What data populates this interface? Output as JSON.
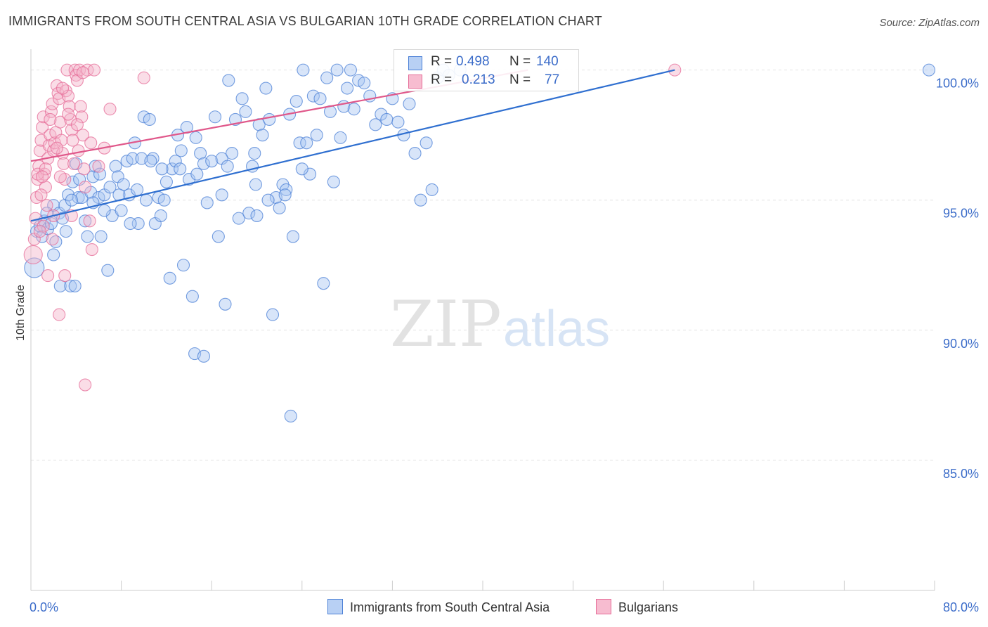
{
  "title": "IMMIGRANTS FROM SOUTH CENTRAL ASIA VS BULGARIAN 10TH GRADE CORRELATION CHART",
  "source": "Source: ZipAtlas.com",
  "watermark": {
    "part1": "ZIP",
    "part2": "atlas"
  },
  "colors": {
    "blue": "#4a7fd6",
    "blue_fill": "#a9c6f2",
    "pink": "#e56b97",
    "pink_fill": "#f5b3c9",
    "axis_text": "#3b6cc9",
    "grid": "#e3e3e3"
  },
  "legend_top": {
    "rows": [
      {
        "r_label": "R =",
        "r_value": "0.498",
        "n_label": "N =",
        "n_value": "140"
      },
      {
        "r_label": "R =",
        "r_value": "0.213",
        "n_label": "N =",
        "n_value": "77"
      }
    ]
  },
  "chart_data": {
    "type": "scatter",
    "ylabel": "10th Grade",
    "xlim": [
      0,
      80
    ],
    "ylim": [
      80,
      100.8
    ],
    "x_ticks": [
      "0.0%",
      "80.0%"
    ],
    "y_ticks": [
      {
        "value": 100,
        "label": "100.0%"
      },
      {
        "value": 95,
        "label": "95.0%"
      },
      {
        "value": 90,
        "label": "90.0%"
      },
      {
        "value": 85,
        "label": "85.0%"
      }
    ],
    "grid": true,
    "legend_position": "bottom",
    "series": [
      {
        "name": "Immigrants from South Central Asia",
        "color": "blue",
        "trend": [
          [
            0,
            94.2
          ],
          [
            57,
            100
          ]
        ],
        "points": [
          [
            0.3,
            92.4
          ],
          [
            0.5,
            93.8
          ],
          [
            0.8,
            94.0
          ],
          [
            1.0,
            93.6
          ],
          [
            1.2,
            94.2
          ],
          [
            1.5,
            93.9
          ],
          [
            1.8,
            94.1
          ],
          [
            2.0,
            94.8
          ],
          [
            2.2,
            93.4
          ],
          [
            2.5,
            94.5
          ],
          [
            2.6,
            91.7
          ],
          [
            3.0,
            94.8
          ],
          [
            3.3,
            95.2
          ],
          [
            3.5,
            91.7
          ],
          [
            3.7,
            95.7
          ],
          [
            4.0,
            96.4
          ],
          [
            4.2,
            95.1
          ],
          [
            4.5,
            95.1
          ],
          [
            4.8,
            94.2
          ],
          [
            5.0,
            93.6
          ],
          [
            5.3,
            95.3
          ],
          [
            5.5,
            95.9
          ],
          [
            5.7,
            96.3
          ],
          [
            6.0,
            95.1
          ],
          [
            6.2,
            93.6
          ],
          [
            6.5,
            95.2
          ],
          [
            6.8,
            92.3
          ],
          [
            7.0,
            95.5
          ],
          [
            7.2,
            94.4
          ],
          [
            7.5,
            96.3
          ],
          [
            7.7,
            95.9
          ],
          [
            8.0,
            94.6
          ],
          [
            8.2,
            95.6
          ],
          [
            8.5,
            96.5
          ],
          [
            8.7,
            95.2
          ],
          [
            9.0,
            96.6
          ],
          [
            9.2,
            97.2
          ],
          [
            9.5,
            94.1
          ],
          [
            9.8,
            96.6
          ],
          [
            10.0,
            98.2
          ],
          [
            10.2,
            95.0
          ],
          [
            10.5,
            98.1
          ],
          [
            10.8,
            96.6
          ],
          [
            11.0,
            94.1
          ],
          [
            11.3,
            95.1
          ],
          [
            11.5,
            94.4
          ],
          [
            11.8,
            95.0
          ],
          [
            12.0,
            95.7
          ],
          [
            12.3,
            92.0
          ],
          [
            12.5,
            96.2
          ],
          [
            12.8,
            96.5
          ],
          [
            13.0,
            97.5
          ],
          [
            13.2,
            96.2
          ],
          [
            13.5,
            92.5
          ],
          [
            13.8,
            97.8
          ],
          [
            14.0,
            95.8
          ],
          [
            14.3,
            91.3
          ],
          [
            14.6,
            97.4
          ],
          [
            15.0,
            96.8
          ],
          [
            15.3,
            96.4
          ],
          [
            15.6,
            94.9
          ],
          [
            16.0,
            96.5
          ],
          [
            16.3,
            98.2
          ],
          [
            16.6,
            93.6
          ],
          [
            16.9,
            95.2
          ],
          [
            17.2,
            91.0
          ],
          [
            17.5,
            99.6
          ],
          [
            17.8,
            96.8
          ],
          [
            18.1,
            98.1
          ],
          [
            18.4,
            94.3
          ],
          [
            18.7,
            98.9
          ],
          [
            19.0,
            98.4
          ],
          [
            19.3,
            94.5
          ],
          [
            19.6,
            96.3
          ],
          [
            19.9,
            95.6
          ],
          [
            20.2,
            97.9
          ],
          [
            20.5,
            97.5
          ],
          [
            20.8,
            99.3
          ],
          [
            21.1,
            98.1
          ],
          [
            21.4,
            90.6
          ],
          [
            21.7,
            95.1
          ],
          [
            22.0,
            94.7
          ],
          [
            22.3,
            95.6
          ],
          [
            22.6,
            95.4
          ],
          [
            22.9,
            98.3
          ],
          [
            23.2,
            93.6
          ],
          [
            23.5,
            98.8
          ],
          [
            23.8,
            97.2
          ],
          [
            24.1,
            100.0
          ],
          [
            24.4,
            97.2
          ],
          [
            24.7,
            96.0
          ],
          [
            25.0,
            99.0
          ],
          [
            25.3,
            97.5
          ],
          [
            25.6,
            98.9
          ],
          [
            25.9,
            91.8
          ],
          [
            26.2,
            99.7
          ],
          [
            26.5,
            98.4
          ],
          [
            26.8,
            95.7
          ],
          [
            27.1,
            100.0
          ],
          [
            27.4,
            97.4
          ],
          [
            27.7,
            98.6
          ],
          [
            28.0,
            99.3
          ],
          [
            28.3,
            100.0
          ],
          [
            28.6,
            98.5
          ],
          [
            29.0,
            99.6
          ],
          [
            29.5,
            99.5
          ],
          [
            30.0,
            99.0
          ],
          [
            30.5,
            97.9
          ],
          [
            31.0,
            98.3
          ],
          [
            31.5,
            98.1
          ],
          [
            32.0,
            98.9
          ],
          [
            32.5,
            98.0
          ],
          [
            33.0,
            97.5
          ],
          [
            33.5,
            98.7
          ],
          [
            34.0,
            96.8
          ],
          [
            34.5,
            95.0
          ],
          [
            35.0,
            97.2
          ],
          [
            35.5,
            95.4
          ],
          [
            36.0,
            99.7
          ],
          [
            36.5,
            100.0
          ],
          [
            37.0,
            99.8
          ],
          [
            38.0,
            100.0
          ],
          [
            79.5,
            100.0
          ],
          [
            2.0,
            92.9
          ],
          [
            3.9,
            91.7
          ],
          [
            14.5,
            89.1
          ],
          [
            15.3,
            89.0
          ],
          [
            23.0,
            86.7
          ],
          [
            6.5,
            94.6
          ],
          [
            9.4,
            95.4
          ],
          [
            10.6,
            96.5
          ],
          [
            16.9,
            96.6
          ],
          [
            17.4,
            96.3
          ],
          [
            19.8,
            96.8
          ],
          [
            21.0,
            95.0
          ],
          [
            22.5,
            95.2
          ],
          [
            24.0,
            96.2
          ],
          [
            1.4,
            94.5
          ],
          [
            2.8,
            94.3
          ],
          [
            3.1,
            93.8
          ],
          [
            3.6,
            95.0
          ],
          [
            4.3,
            95.8
          ],
          [
            5.5,
            94.9
          ],
          [
            6.1,
            96.0
          ],
          [
            7.8,
            95.2
          ],
          [
            8.8,
            94.1
          ],
          [
            11.6,
            96.2
          ],
          [
            13.3,
            96.9
          ],
          [
            14.7,
            96.0
          ],
          [
            20.0,
            94.4
          ]
        ]
      },
      {
        "name": "Bulgarians",
        "color": "pink",
        "trend": [
          [
            0,
            96.5
          ],
          [
            44,
            100
          ]
        ],
        "points": [
          [
            0.2,
            92.9
          ],
          [
            0.3,
            93.5
          ],
          [
            0.4,
            94.3
          ],
          [
            0.5,
            95.1
          ],
          [
            0.6,
            95.8
          ],
          [
            0.7,
            96.3
          ],
          [
            0.8,
            96.9
          ],
          [
            0.9,
            97.3
          ],
          [
            1.0,
            97.8
          ],
          [
            1.1,
            98.2
          ],
          [
            1.2,
            96.0
          ],
          [
            1.3,
            95.5
          ],
          [
            1.4,
            94.8
          ],
          [
            1.5,
            96.6
          ],
          [
            1.6,
            97.1
          ],
          [
            1.7,
            97.5
          ],
          [
            1.8,
            98.4
          ],
          [
            1.9,
            98.7
          ],
          [
            2.0,
            96.9
          ],
          [
            2.1,
            97.2
          ],
          [
            2.2,
            97.6
          ],
          [
            2.3,
            99.4
          ],
          [
            2.4,
            99.1
          ],
          [
            2.5,
            98.9
          ],
          [
            2.6,
            98.0
          ],
          [
            2.7,
            97.3
          ],
          [
            2.8,
            96.8
          ],
          [
            2.9,
            96.4
          ],
          [
            3.0,
            95.8
          ],
          [
            3.1,
            99.2
          ],
          [
            3.2,
            100.0
          ],
          [
            3.3,
            99.0
          ],
          [
            3.4,
            98.6
          ],
          [
            3.5,
            98.1
          ],
          [
            3.6,
            97.7
          ],
          [
            3.7,
            97.3
          ],
          [
            3.8,
            96.4
          ],
          [
            3.9,
            100.0
          ],
          [
            4.0,
            99.8
          ],
          [
            4.1,
            99.6
          ],
          [
            4.2,
            96.9
          ],
          [
            4.3,
            100.0
          ],
          [
            4.4,
            98.6
          ],
          [
            4.5,
            98.2
          ],
          [
            4.6,
            97.5
          ],
          [
            4.7,
            96.2
          ],
          [
            4.8,
            95.5
          ],
          [
            5.0,
            100.0
          ],
          [
            5.2,
            94.2
          ],
          [
            5.4,
            93.1
          ],
          [
            5.6,
            100.0
          ],
          [
            6.0,
            96.3
          ],
          [
            6.5,
            97.0
          ],
          [
            7.0,
            98.5
          ],
          [
            10.0,
            99.7
          ],
          [
            2.5,
            90.6
          ],
          [
            4.8,
            87.9
          ],
          [
            3.0,
            92.1
          ],
          [
            1.5,
            92.1
          ],
          [
            2.0,
            94.4
          ],
          [
            0.6,
            96.0
          ],
          [
            0.9,
            95.2
          ],
          [
            1.1,
            94.0
          ],
          [
            1.3,
            96.2
          ],
          [
            1.7,
            98.1
          ],
          [
            2.3,
            97.0
          ],
          [
            2.8,
            99.3
          ],
          [
            3.3,
            98.3
          ],
          [
            3.6,
            94.4
          ],
          [
            4.1,
            97.9
          ],
          [
            4.6,
            99.9
          ],
          [
            5.3,
            97.2
          ],
          [
            0.8,
            93.8
          ],
          [
            1.0,
            95.9
          ],
          [
            1.9,
            93.5
          ],
          [
            2.6,
            95.9
          ],
          [
            57.0,
            100.0
          ]
        ]
      }
    ],
    "x_extra_ticks": [
      8,
      16,
      24,
      32,
      40,
      48,
      56,
      64,
      72
    ]
  },
  "legend_bottom": {
    "items": [
      {
        "label": "Immigrants from South Central Asia",
        "color": "blue"
      },
      {
        "label": "Bulgarians",
        "color": "pink"
      }
    ]
  }
}
